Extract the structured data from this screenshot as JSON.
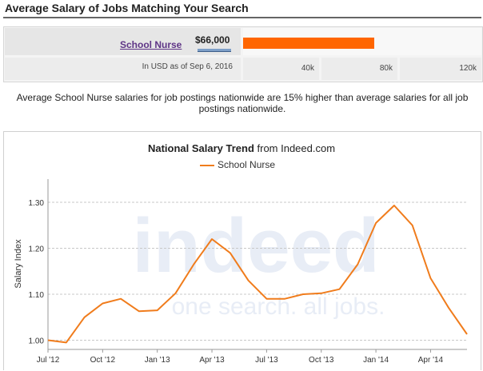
{
  "header": {
    "title": "Average Salary of Jobs Matching Your Search"
  },
  "salary": {
    "job_title": "School Nurse",
    "amount_label": "$66,000",
    "amount_value": 66000,
    "bar_max": 120000,
    "note": "In USD as of Sep 6, 2016",
    "scale_ticks": [
      "40k",
      "80k",
      "120k"
    ]
  },
  "summary": "Average School Nurse salaries for job postings nationwide are 15% higher than average salaries for all job postings nationwide.",
  "colors": {
    "series": "#f07c1c",
    "bar": "#ff6600",
    "watermark": "#e6ecf5"
  },
  "chart_data": {
    "type": "line",
    "title_bold": "National Salary Trend",
    "title_rest": " from Indeed.com",
    "ylabel": "Salary Index",
    "xlabel": "",
    "ylim": [
      0.98,
      1.34
    ],
    "yticks": [
      1.0,
      1.1,
      1.2,
      1.3
    ],
    "ytick_labels": [
      "1.00",
      "1.10",
      "1.20",
      "1.30"
    ],
    "xlim": [
      0,
      23
    ],
    "xticks": [
      0,
      3,
      6,
      9,
      12,
      15,
      18,
      21
    ],
    "xtick_labels": [
      "Jul '12",
      "Oct '12",
      "Jan '13",
      "Apr '13",
      "Jul '13",
      "Oct '13",
      "Jan '14",
      "Apr '14"
    ],
    "grid": true,
    "legend": "top-center",
    "watermark": {
      "logo": "indeed",
      "tagline": "one search. all jobs."
    },
    "series": [
      {
        "name": "School Nurse",
        "x": [
          0,
          1,
          2,
          3,
          4,
          5,
          6,
          7,
          8,
          9,
          10,
          11,
          12,
          13,
          14,
          15,
          16,
          17,
          18,
          19,
          20,
          21,
          22,
          23
        ],
        "values": [
          1.0,
          0.995,
          1.05,
          1.08,
          1.09,
          1.063,
          1.065,
          1.102,
          1.165,
          1.22,
          1.19,
          1.13,
          1.09,
          1.09,
          1.1,
          1.102,
          1.111,
          1.165,
          1.255,
          1.293,
          1.25,
          1.135,
          1.07,
          1.013
        ]
      }
    ]
  }
}
